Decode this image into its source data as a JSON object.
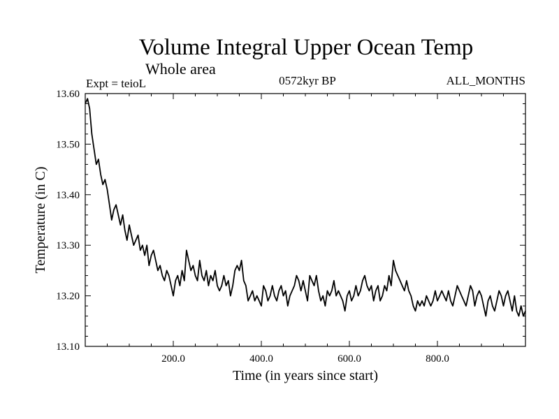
{
  "chart_data": {
    "type": "line",
    "title": "Volume Integral Upper Ocean Temp",
    "subtitle": "Whole area",
    "annotations": {
      "left": "Expt = teioL",
      "center": "0572kyr BP",
      "right": "ALL_MONTHS"
    },
    "xlabel": "Time (in years since start)",
    "ylabel": "Temperature (in C)",
    "xlim": [
      0,
      1000
    ],
    "ylim": [
      13.1,
      13.6
    ],
    "x_ticks": [
      200,
      400,
      600,
      800
    ],
    "x_tick_labels": [
      "200.0",
      "400.0",
      "600.0",
      "800.0"
    ],
    "y_ticks": [
      13.1,
      13.2,
      13.3,
      13.4,
      13.5,
      13.6
    ],
    "y_tick_labels": [
      "13.10",
      "13.20",
      "13.30",
      "13.40",
      "13.50",
      "13.60"
    ],
    "grid": false,
    "series": [
      {
        "name": "Volume integral upper ocean temperature",
        "color": "#000000",
        "x": [
          0,
          5,
          10,
          15,
          20,
          25,
          30,
          35,
          40,
          45,
          50,
          55,
          60,
          65,
          70,
          75,
          80,
          85,
          90,
          95,
          100,
          105,
          110,
          115,
          120,
          125,
          130,
          135,
          140,
          145,
          150,
          155,
          160,
          165,
          170,
          175,
          180,
          185,
          190,
          195,
          200,
          205,
          210,
          215,
          220,
          225,
          230,
          235,
          240,
          245,
          250,
          255,
          260,
          265,
          270,
          275,
          280,
          285,
          290,
          295,
          300,
          305,
          310,
          315,
          320,
          325,
          330,
          335,
          340,
          345,
          350,
          355,
          360,
          365,
          370,
          375,
          380,
          385,
          390,
          395,
          400,
          405,
          410,
          415,
          420,
          425,
          430,
          435,
          440,
          445,
          450,
          455,
          460,
          465,
          470,
          475,
          480,
          485,
          490,
          495,
          500,
          505,
          510,
          515,
          520,
          525,
          530,
          535,
          540,
          545,
          550,
          555,
          560,
          565,
          570,
          575,
          580,
          585,
          590,
          595,
          600,
          605,
          610,
          615,
          620,
          625,
          630,
          635,
          640,
          645,
          650,
          655,
          660,
          665,
          670,
          675,
          680,
          685,
          690,
          695,
          700,
          705,
          710,
          715,
          720,
          725,
          730,
          735,
          740,
          745,
          750,
          755,
          760,
          765,
          770,
          775,
          780,
          785,
          790,
          795,
          800,
          805,
          810,
          815,
          820,
          825,
          830,
          835,
          840,
          845,
          850,
          855,
          860,
          865,
          870,
          875,
          880,
          885,
          890,
          895,
          900,
          905,
          910,
          915,
          920,
          925,
          930,
          935,
          940,
          945,
          950,
          955,
          960,
          965,
          970,
          975,
          980,
          985,
          990,
          995,
          1000
        ],
        "y": [
          13.58,
          13.59,
          13.57,
          13.52,
          13.49,
          13.46,
          13.47,
          13.44,
          13.42,
          13.43,
          13.41,
          13.38,
          13.35,
          13.37,
          13.38,
          13.36,
          13.34,
          13.36,
          13.33,
          13.31,
          13.34,
          13.32,
          13.3,
          13.31,
          13.32,
          13.29,
          13.3,
          13.28,
          13.3,
          13.26,
          13.28,
          13.29,
          13.27,
          13.25,
          13.26,
          13.24,
          13.23,
          13.25,
          13.24,
          13.22,
          13.2,
          13.23,
          13.24,
          13.22,
          13.25,
          13.23,
          13.29,
          13.27,
          13.25,
          13.26,
          13.24,
          13.23,
          13.27,
          13.24,
          13.23,
          13.25,
          13.22,
          13.24,
          13.23,
          13.25,
          13.22,
          13.21,
          13.22,
          13.24,
          13.22,
          13.23,
          13.2,
          13.22,
          13.25,
          13.26,
          13.25,
          13.27,
          13.23,
          13.22,
          13.19,
          13.2,
          13.21,
          13.19,
          13.2,
          13.19,
          13.18,
          13.22,
          13.21,
          13.19,
          13.2,
          13.22,
          13.2,
          13.19,
          13.21,
          13.22,
          13.2,
          13.21,
          13.18,
          13.2,
          13.21,
          13.22,
          13.24,
          13.23,
          13.21,
          13.23,
          13.21,
          13.19,
          13.24,
          13.23,
          13.22,
          13.24,
          13.21,
          13.19,
          13.2,
          13.18,
          13.21,
          13.2,
          13.21,
          13.23,
          13.2,
          13.21,
          13.2,
          13.19,
          13.17,
          13.2,
          13.21,
          13.19,
          13.2,
          13.22,
          13.2,
          13.21,
          13.23,
          13.24,
          13.22,
          13.21,
          13.22,
          13.19,
          13.21,
          13.22,
          13.19,
          13.2,
          13.22,
          13.21,
          13.24,
          13.22,
          13.27,
          13.25,
          13.24,
          13.23,
          13.22,
          13.21,
          13.23,
          13.21,
          13.2,
          13.18,
          13.17,
          13.19,
          13.18,
          13.19,
          13.18,
          13.2,
          13.19,
          13.18,
          13.19,
          13.21,
          13.19,
          13.2,
          13.21,
          13.2,
          13.19,
          13.21,
          13.19,
          13.18,
          13.2,
          13.22,
          13.21,
          13.2,
          13.19,
          13.18,
          13.2,
          13.22,
          13.21,
          13.18,
          13.2,
          13.21,
          13.2,
          13.18,
          13.16,
          13.19,
          13.2,
          13.18,
          13.17,
          13.19,
          13.21,
          13.2,
          13.18,
          13.2,
          13.21,
          13.19,
          13.17,
          13.2,
          13.17,
          13.16,
          13.18,
          13.16,
          13.17
        ]
      }
    ]
  }
}
